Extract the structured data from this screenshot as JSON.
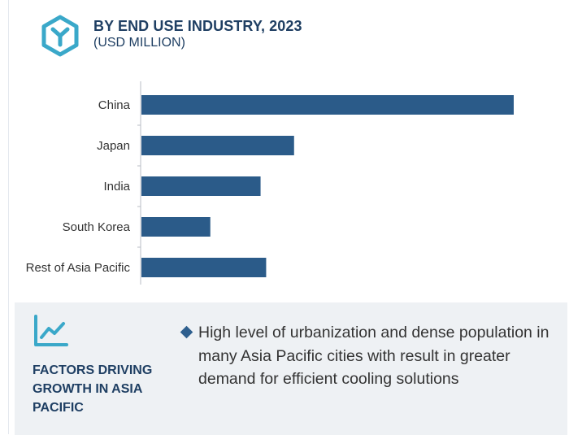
{
  "header": {
    "title": "BY END USE INDUSTRY, 2023",
    "subtitle": "(USD MILLION)",
    "logo_icon": "hexagon-y-logo-icon"
  },
  "colors": {
    "bar": "#2b5b89",
    "title": "#1f3f63",
    "logo": "#3aa8c9",
    "panel_bg": "#eef1f4",
    "axis": "#b8bec6"
  },
  "chart_data": {
    "type": "bar",
    "orientation": "horizontal",
    "title": "BY END USE INDUSTRY, 2023",
    "subtitle": "(USD MILLION)",
    "categories": [
      "China",
      "Japan",
      "India",
      "South Korea",
      "Rest of Asia Pacific"
    ],
    "values": [
      100,
      41,
      32,
      18.5,
      33.5
    ],
    "xlim": [
      0,
      100
    ],
    "value_axis_labels_shown": false,
    "grid": false,
    "legend": "none"
  },
  "factors": {
    "icon": "trend-line-chart-icon",
    "title": "FACTORS DRIVING GROWTH IN ASIA PACIFIC",
    "items": [
      "High level of urbanization and dense population in many Asia Pacific cities with result in greater demand for efficient cooling solutions"
    ]
  }
}
